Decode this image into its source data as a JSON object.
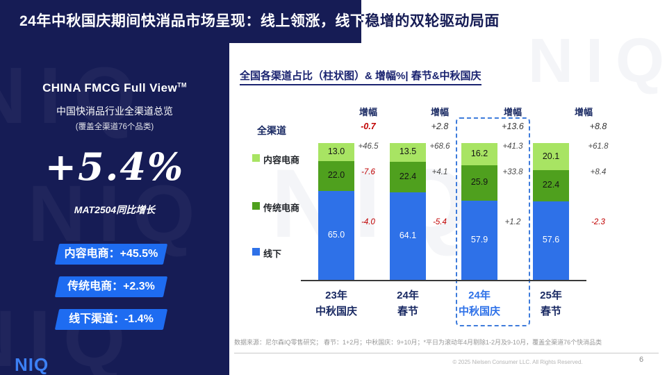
{
  "slide": {
    "title": "24年中秋国庆期间快消品市场呈现：线上领涨，线下稳增的双轮驱动局面",
    "watermark": "NIQ",
    "page_number": "6",
    "copyright": "© 2025 Nielsen Consumer LLC. All Rights Reserved.",
    "footnote": "数据来源：尼尔森IQ零售研究； 春节：1+2月；中秋国庆：9+10月；*平日为滚动年4月剔除1-2月及9-10月，覆盖全渠道76个快消品类"
  },
  "sidebar": {
    "brand_title": "CHINA FMCG Full View",
    "brand_tm": "TM",
    "subtitle": "中国快消品行业全渠道总览",
    "coverage_note": "(覆盖全渠道76个品类)",
    "headline_metric": "+5.4%",
    "headline_caption": "MAT2504同比增长",
    "badges": [
      {
        "text": "内容电商：+45.5%"
      },
      {
        "text": "传统电商：+2.3%"
      },
      {
        "text": "线下渠道：-1.4%"
      }
    ],
    "logo": "NIQ"
  },
  "chart": {
    "title": "全国各渠道占比（柱状图）& 增幅%| 春节&中秋国庆"
  },
  "chart_data": {
    "type": "bar",
    "stacked": true,
    "unit": "percent share of omnichannel",
    "title": "全国各渠道占比（柱状图）& 增幅%| 春节&中秋国庆",
    "categories": [
      "23年中秋国庆",
      "24年春节",
      "24年中秋国庆",
      "25年春节"
    ],
    "category_lines": [
      [
        "23年",
        "中秋国庆"
      ],
      [
        "24年",
        "春节"
      ],
      [
        "24年",
        "中秋国庆"
      ],
      [
        "25年",
        "春节"
      ]
    ],
    "highlight_index": 2,
    "growth_header": "增幅",
    "total_label": "全渠道",
    "total_growth": [
      "-0.7",
      "+2.8",
      "+13.6",
      "+8.8"
    ],
    "series": [
      {
        "key": "offline",
        "name": "线下",
        "color": "#2E71E8",
        "values": [
          65.0,
          64.1,
          57.9,
          57.6
        ],
        "growth": [
          "-4.0",
          "-5.4",
          "+1.2",
          "-2.3"
        ]
      },
      {
        "key": "traditional-ecommerce",
        "name": "传统电商",
        "color": "#4FA01E",
        "values": [
          22.0,
          22.4,
          25.9,
          22.4
        ],
        "growth": [
          "-7.6",
          "+4.1",
          "+33.8",
          "+8.4"
        ]
      },
      {
        "key": "content-ecommerce",
        "name": "内容电商",
        "color": "#A8E463",
        "values": [
          13.0,
          13.5,
          16.2,
          20.1
        ],
        "growth": [
          "+46.5",
          "+68.6",
          "+41.3",
          "+61.8"
        ]
      }
    ],
    "ylim": [
      0,
      100
    ],
    "legend_position": "left",
    "grid": false
  },
  "colors": {
    "navy": "#161C55",
    "accent_blue": "#2E71E8",
    "badge_blue": "#1E6CF1",
    "logo_blue": "#3C80F5",
    "negative_red": "#C00000",
    "positive_dark": "#4a4a4a",
    "highlight_border": "#3D7BDB"
  }
}
